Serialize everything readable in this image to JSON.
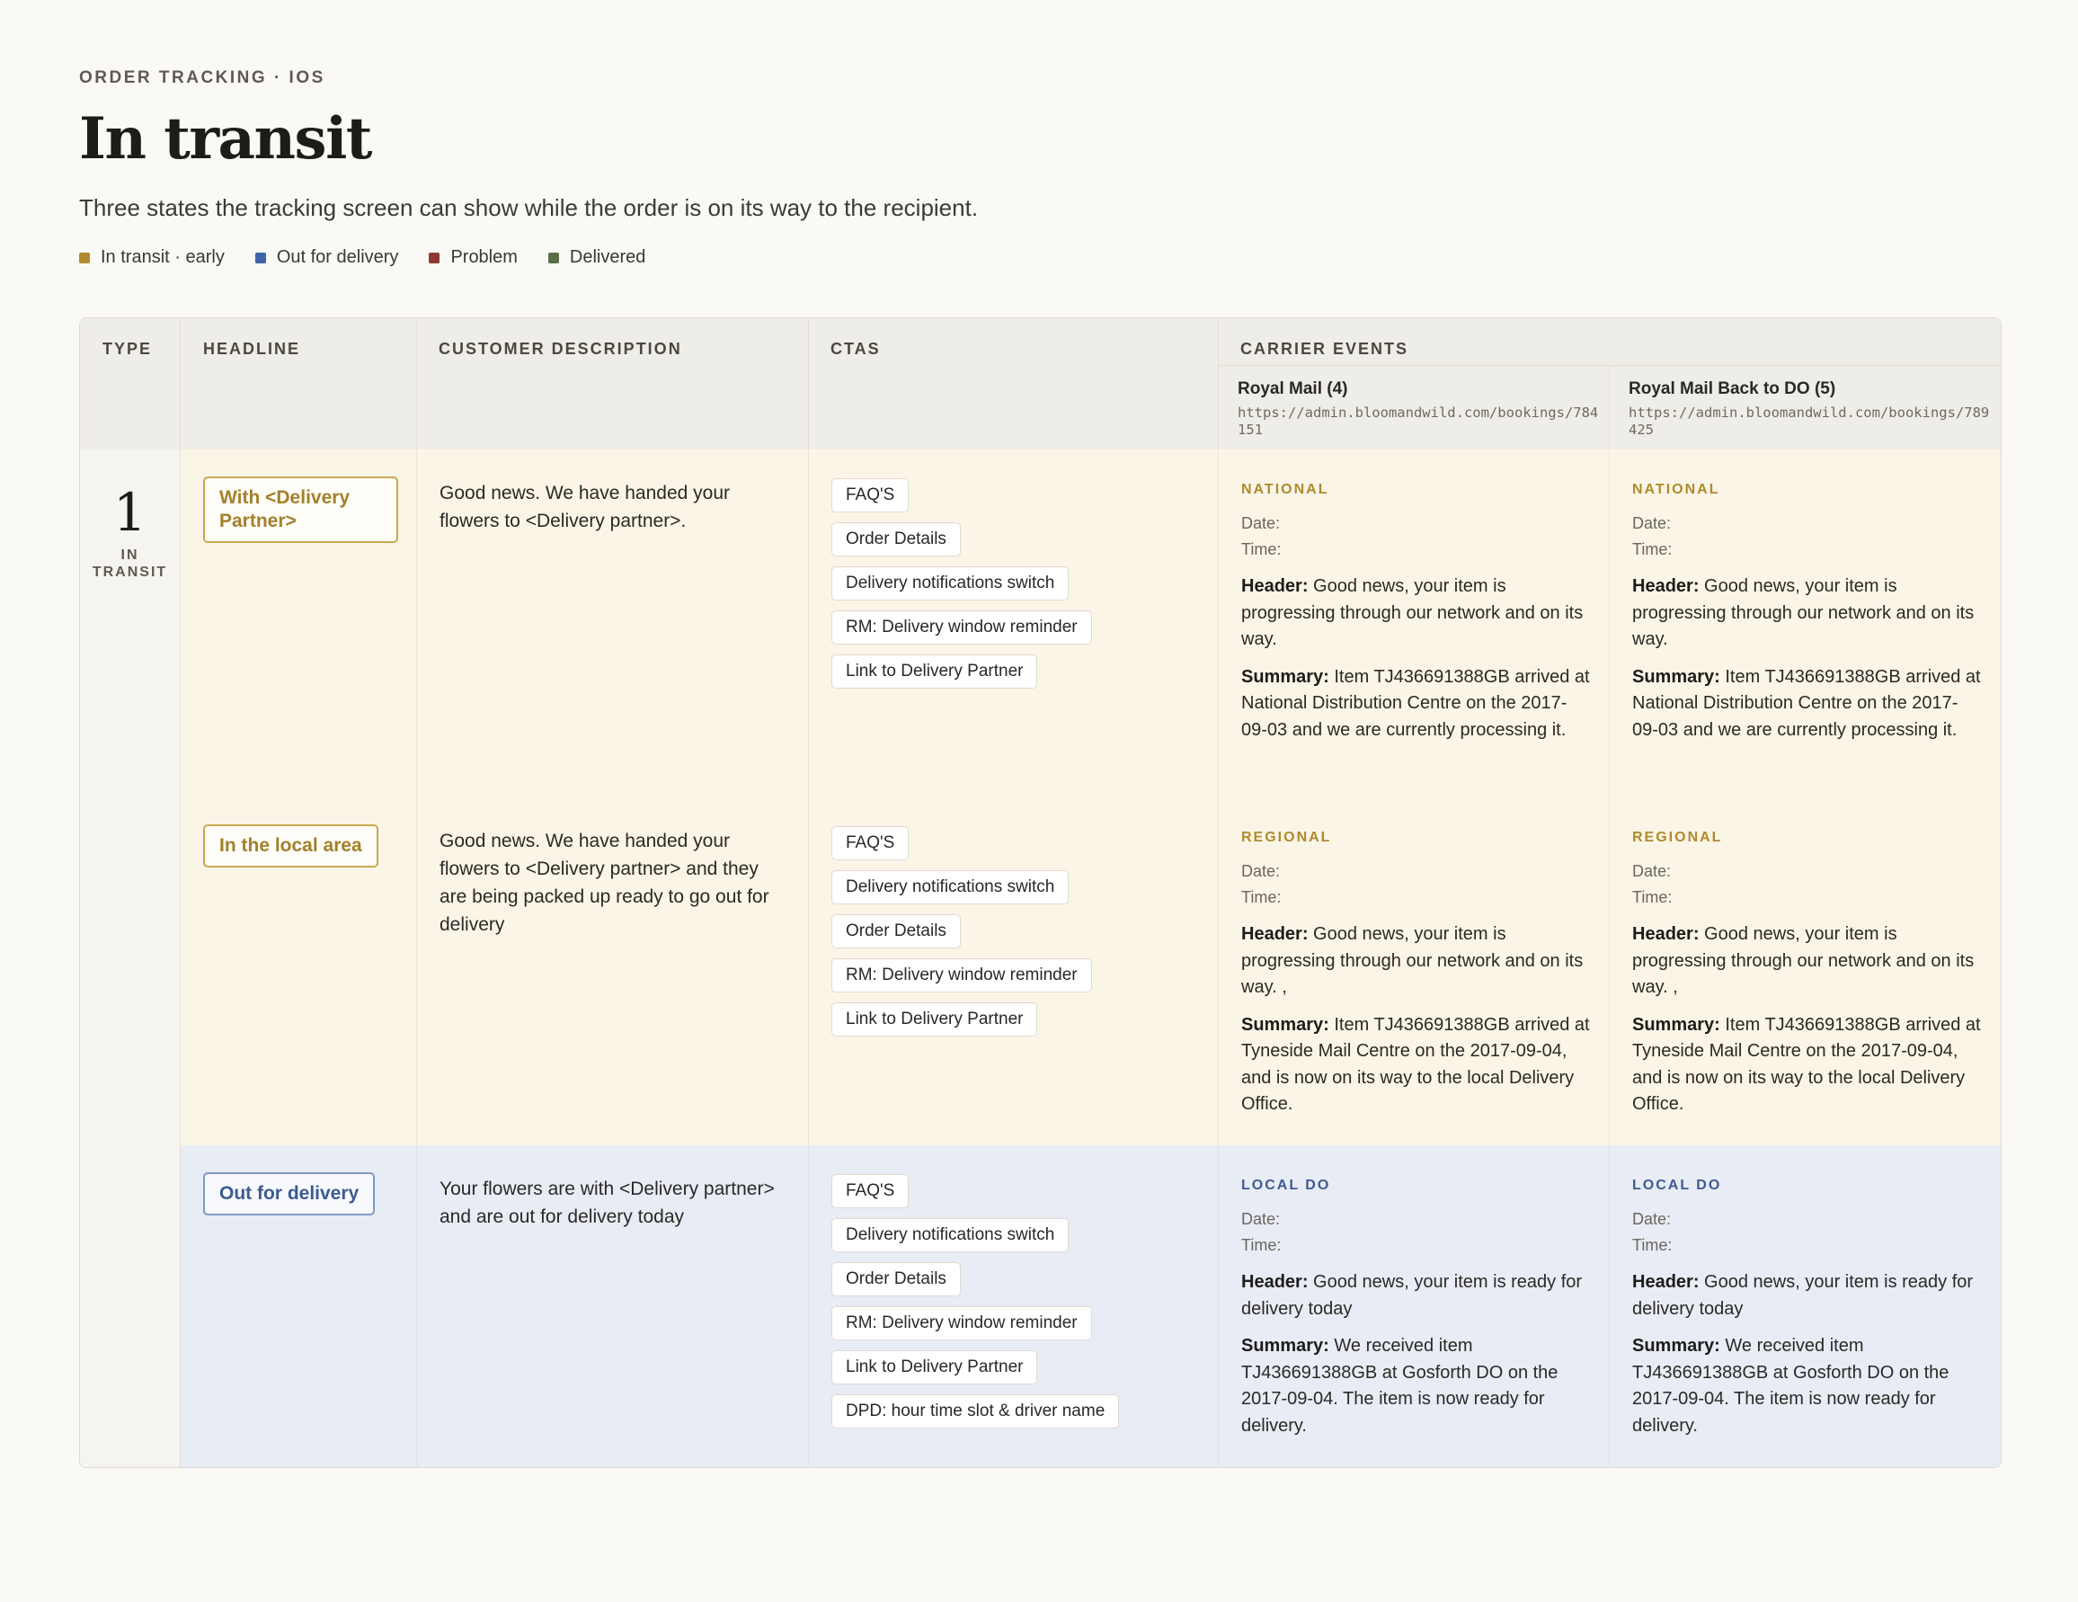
{
  "header": {
    "eyebrow": "ORDER TRACKING · IOS",
    "title": "In transit",
    "subtitle": "Three states the tracking screen can show while the order is on its way to the recipient."
  },
  "legend": [
    {
      "label": "In transit · early",
      "color": "#b08a2c"
    },
    {
      "label": "Out for delivery",
      "color": "#3e63a8"
    },
    {
      "label": "Problem",
      "color": "#8f3a30"
    },
    {
      "label": "Delivered",
      "color": "#5a6e45"
    }
  ],
  "table": {
    "columns": {
      "type": "TYPE",
      "headline": "HEADLINE",
      "description": "CUSTOMER DESCRIPTION",
      "ctas": "CTAS",
      "carrier_events": "CARRIER EVENTS"
    },
    "carriers": [
      {
        "name": "Royal Mail (4)",
        "url": "https://admin.bloomandwild.com/bookings/784151"
      },
      {
        "name": "Royal Mail Back to DO (5)",
        "url": "https://admin.bloomandwild.com/bookings/789425"
      }
    ],
    "type": {
      "number": "1",
      "label_line1": "IN",
      "label_line2": "TRANSIT"
    },
    "labels": {
      "date": "Date:",
      "time": "Time:",
      "header": "Header:",
      "summary": "Summary:"
    },
    "rows": [
      {
        "headline": "With <Delivery Partner>",
        "description": "Good news. We have handed your flowers to <Delivery partner>.",
        "ctas": [
          "FAQ'S",
          "Order Details",
          "Delivery notifications switch",
          "RM: Delivery window reminder",
          "Link to Delivery Partner"
        ],
        "events": [
          {
            "stage": "NATIONAL",
            "header": "Good news, your item is progressing through our network and on its way.",
            "summary": "Item TJ436691388GB arrived at National Distribution Centre on the 2017-09-03 and we are currently processing it."
          },
          {
            "stage": "NATIONAL",
            "header": "Good news, your item is progressing through our network and on its way.",
            "summary": "Item TJ436691388GB arrived at National Distribution Centre on the 2017-09-03 and we are currently processing it."
          }
        ]
      },
      {
        "headline": "In the local area",
        "description": "Good news. We have handed your flowers to <Delivery partner> and they are being packed up ready to go out for delivery",
        "ctas": [
          "FAQ'S",
          "Delivery notifications switch",
          "Order Details",
          "RM: Delivery window reminder",
          "Link to Delivery Partner"
        ],
        "events": [
          {
            "stage": "REGIONAL",
            "header": "Good news, your item is progressing through our network and on its way. ,",
            "summary": "Item TJ436691388GB arrived at Tyneside Mail Centre on the 2017-09-04, and is now on its way to the local Delivery Office."
          },
          {
            "stage": "REGIONAL",
            "header": "Good news, your item is progressing through our network and on its way. ,",
            "summary": "Item TJ436691388GB arrived at Tyneside Mail Centre on the 2017-09-04, and is now on its way to the local Delivery Office."
          }
        ]
      },
      {
        "headline": "Out for delivery",
        "description": "Your flowers are with <Delivery partner> and are out for delivery today",
        "ctas": [
          "FAQ'S",
          "Delivery notifications switch",
          "Order Details",
          "RM: Delivery window reminder",
          "Link to Delivery Partner",
          "DPD: hour time slot & driver name"
        ],
        "events": [
          {
            "stage": "LOCAL DO",
            "header": "Good news, your item is ready for delivery today",
            "summary": "We received item TJ436691388GB at Gosforth DO on the 2017-09-04. The item is now ready for delivery."
          },
          {
            "stage": "LOCAL DO",
            "header": "Good news, your item is ready for delivery today",
            "summary": "We received item TJ436691388GB at Gosforth DO on the 2017-09-04. The item is now ready for delivery."
          }
        ]
      }
    ]
  }
}
